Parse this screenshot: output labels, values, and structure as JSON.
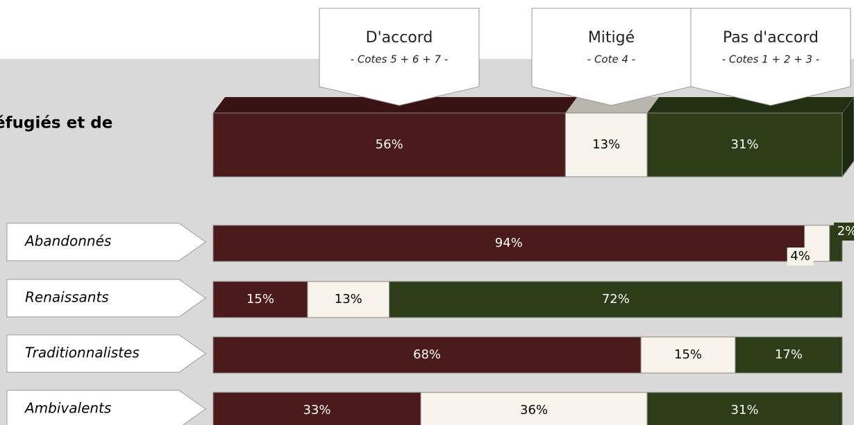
{
  "chart_data": {
    "type": "bar",
    "title": "éfugiés et de",
    "categories": [
      null,
      "Abandonnés",
      "Renaissants",
      "Traditionnalistes",
      "Ambivalents"
    ],
    "xlim": [
      0,
      100
    ],
    "series": [
      {
        "name": "D'accord",
        "sublabel": "- Cotes 5 + 6 + 7 -",
        "color": "#4b1a1a",
        "values": [
          56,
          94,
          15,
          68,
          33
        ],
        "value_labels": [
          "56%",
          "94%",
          "15%",
          "68%",
          "33%"
        ]
      },
      {
        "name": "Mitigé",
        "sublabel": "- Cote 4 -",
        "color": "#f7f3ea",
        "values": [
          13,
          4,
          13,
          15,
          36
        ],
        "value_labels": [
          "13%",
          "4%",
          "13%",
          "15%",
          "36%"
        ]
      },
      {
        "name": "Pas d'accord",
        "sublabel": "- Cotes 1 + 2 + 3 -",
        "color": "#2c3d17",
        "values": [
          31,
          2,
          72,
          17,
          31
        ],
        "value_labels": [
          "31%",
          "2%",
          "72%",
          "17%",
          "31%"
        ]
      }
    ]
  }
}
